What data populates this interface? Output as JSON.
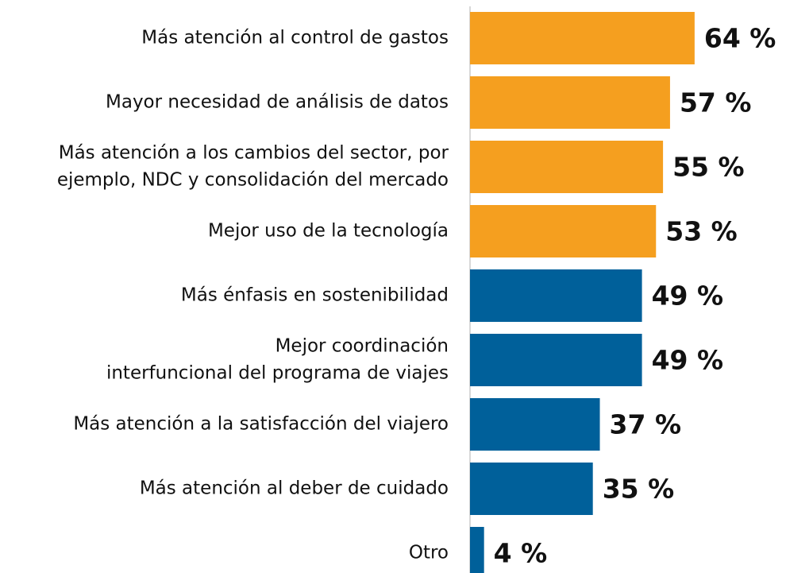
{
  "chart_data": {
    "type": "bar",
    "orientation": "horizontal",
    "categories": [
      [
        "Más atención al control de gastos"
      ],
      [
        "Mayor necesidad de análisis de datos"
      ],
      [
        "Más atención a los cambios del sector, por",
        "ejemplo, NDC y consolidación del mercado"
      ],
      [
        "Mejor uso de la tecnología"
      ],
      [
        "Más énfasis en sostenibilidad"
      ],
      [
        "Mejor coordinación",
        "interfuncional del programa de viajes"
      ],
      [
        "Más atención a la satisfacción del viajero"
      ],
      [
        "Más atención al deber de cuidado"
      ],
      [
        "Otro"
      ]
    ],
    "values": [
      64,
      57,
      55,
      53,
      49,
      49,
      37,
      35,
      4
    ],
    "value_labels": [
      "64 %",
      "57 %",
      "55 %",
      "53 %",
      "49 %",
      "49 %",
      "37 %",
      "35 %",
      "4 %"
    ],
    "colors": [
      "#f59f1f",
      "#f59f1f",
      "#f59f1f",
      "#f59f1f",
      "#00609a",
      "#00609a",
      "#00609a",
      "#00609a",
      "#00609a"
    ]
  }
}
